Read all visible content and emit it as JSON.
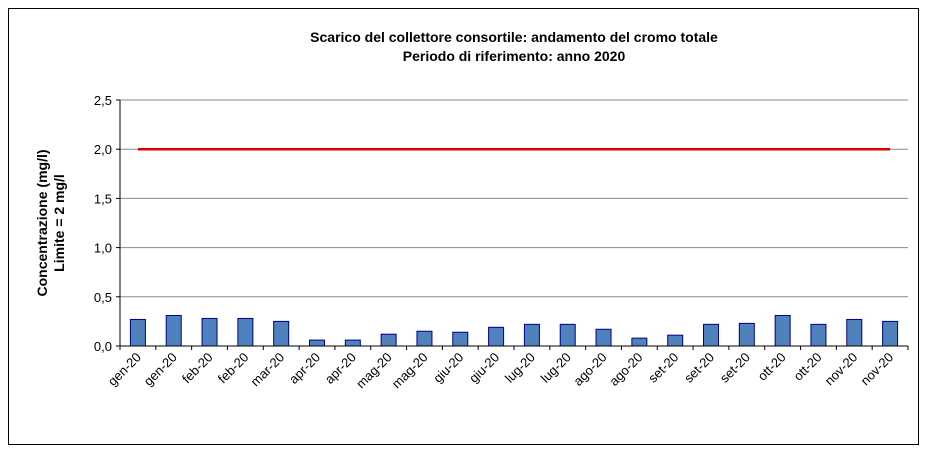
{
  "chart_data": {
    "type": "bar",
    "title": [
      "Scarico del collettore consortile: andamento del cromo totale",
      "Periodo di riferimento: anno 2020"
    ],
    "y_label": [
      "Concentrazione (mg/l)",
      "Limite = 2 mg/l"
    ],
    "categories": [
      "gen-20",
      "gen-20",
      "feb-20",
      "feb-20",
      "mar-20",
      "apr-20",
      "apr-20",
      "mag-20",
      "mag-20",
      "giu-20",
      "giu-20",
      "lug-20",
      "lug-20",
      "ago-20",
      "ago-20",
      "set-20",
      "set-20",
      "set-20",
      "ott-20",
      "ott-20",
      "nov-20",
      "nov-20"
    ],
    "values": [
      0.27,
      0.31,
      0.28,
      0.28,
      0.25,
      0.06,
      0.06,
      0.12,
      0.15,
      0.14,
      0.19,
      0.22,
      0.22,
      0.17,
      0.08,
      0.11,
      0.22,
      0.23,
      0.31,
      0.22,
      0.27,
      0.25
    ],
    "color": "#4f81bd",
    "limit": 2,
    "limit_color": "#e00000",
    "ylim": [
      0,
      2.5
    ],
    "yticks": [
      {
        "value": 0,
        "label": "0,0"
      },
      {
        "value": 0.5,
        "label": "0,5"
      },
      {
        "value": 1,
        "label": "1,0"
      },
      {
        "value": 1.5,
        "label": "1,5"
      },
      {
        "value": 2,
        "label": "2,0"
      },
      {
        "value": 2.5,
        "label": "2,5"
      }
    ],
    "grid": true
  }
}
